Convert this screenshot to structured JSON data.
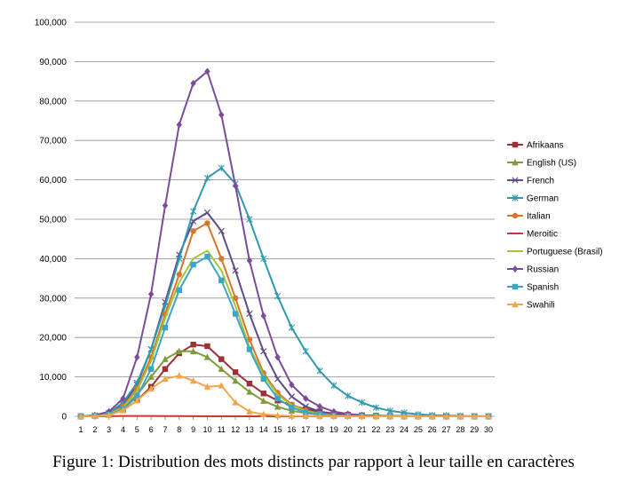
{
  "chart_data": {
    "type": "line",
    "x": [
      1,
      2,
      3,
      4,
      5,
      6,
      7,
      8,
      9,
      10,
      11,
      12,
      13,
      14,
      15,
      16,
      17,
      18,
      19,
      20,
      21,
      22,
      23,
      24,
      25,
      26,
      27,
      28,
      29,
      30
    ],
    "ylim": [
      0,
      100000
    ],
    "yticks": [
      0,
      10000,
      20000,
      30000,
      40000,
      50000,
      60000,
      70000,
      80000,
      90000,
      100000
    ],
    "ytick_labels": [
      "0",
      "10,000",
      "20,000",
      "30,000",
      "40,000",
      "50,000",
      "60,000",
      "70,000",
      "80,000",
      "90,000",
      "100,000"
    ],
    "grid": "horizontal",
    "legend_position": "right",
    "series": [
      {
        "name": "Afrikaans",
        "color": "#9B3135",
        "marker": "square",
        "values": [
          0,
          100,
          400,
          1500,
          4000,
          7500,
          12000,
          16000,
          18200,
          17800,
          14500,
          11200,
          8300,
          5800,
          4000,
          2800,
          1800,
          1200,
          700,
          400,
          250,
          150,
          100,
          50,
          30,
          20,
          10,
          5,
          0,
          0
        ]
      },
      {
        "name": "English (US)",
        "color": "#7F9B3A",
        "marker": "triangle",
        "values": [
          0,
          100,
          500,
          2000,
          5500,
          10000,
          14500,
          16500,
          16500,
          15000,
          12000,
          9000,
          6200,
          3900,
          2400,
          1400,
          800,
          400,
          200,
          100,
          50,
          30,
          20,
          10,
          5,
          0,
          0,
          0,
          0,
          0
        ]
      },
      {
        "name": "French",
        "color": "#5F4A8B",
        "marker": "x",
        "values": [
          0,
          200,
          800,
          3000,
          8000,
          17000,
          29000,
          41000,
          49500,
          51700,
          47000,
          37000,
          26000,
          16500,
          9500,
          5000,
          2500,
          1200,
          500,
          200,
          100,
          50,
          20,
          10,
          5,
          0,
          0,
          0,
          0,
          0
        ]
      },
      {
        "name": "German",
        "color": "#2F9AAE",
        "marker": "star",
        "values": [
          0,
          200,
          800,
          3500,
          8500,
          17000,
          28000,
          40000,
          52000,
          60500,
          63000,
          59000,
          50000,
          40000,
          30500,
          22500,
          16500,
          11500,
          7800,
          5200,
          3500,
          2200,
          1400,
          900,
          500,
          300,
          200,
          100,
          50,
          20
        ]
      },
      {
        "name": "Italian",
        "color": "#D9752B",
        "marker": "circle",
        "values": [
          0,
          100,
          600,
          2500,
          7000,
          15000,
          26000,
          36000,
          47000,
          49000,
          40000,
          30000,
          19500,
          11000,
          6000,
          3000,
          1500,
          700,
          300,
          100,
          50,
          20,
          10,
          5,
          0,
          0,
          0,
          0,
          0,
          0
        ]
      },
      {
        "name": "Meroitic",
        "color": "#C8382D",
        "marker": "none",
        "values": [
          0,
          20,
          50,
          80,
          100,
          80,
          60,
          40,
          20,
          10,
          5,
          0,
          0,
          0,
          0,
          0,
          0,
          0,
          0,
          0,
          0,
          0,
          0,
          0,
          0,
          0,
          0,
          0,
          0,
          0
        ]
      },
      {
        "name": "Portuguese (Brasil)",
        "color": "#A4C43A",
        "marker": "none",
        "values": [
          0,
          100,
          500,
          2200,
          6500,
          14000,
          25000,
          34000,
          40000,
          42000,
          37000,
          28000,
          17500,
          10500,
          5500,
          2800,
          1300,
          600,
          250,
          100,
          50,
          20,
          10,
          5,
          0,
          0,
          0,
          0,
          0,
          0
        ]
      },
      {
        "name": "Russian",
        "color": "#7C4B9C",
        "marker": "diamond",
        "values": [
          0,
          300,
          1200,
          4500,
          15000,
          31000,
          53500,
          74000,
          84500,
          87500,
          76500,
          58500,
          39500,
          25500,
          15000,
          8000,
          4500,
          2500,
          1200,
          600,
          300,
          150,
          80,
          40,
          20,
          10,
          5,
          0,
          0,
          0
        ]
      },
      {
        "name": "Spanish",
        "color": "#3BA6C8",
        "marker": "square",
        "values": [
          0,
          100,
          400,
          1800,
          5000,
          12000,
          22500,
          32000,
          38500,
          40500,
          34500,
          26000,
          17000,
          9500,
          4500,
          2200,
          1000,
          500,
          200,
          100,
          50,
          20,
          10,
          5,
          0,
          0,
          0,
          0,
          0,
          0
        ]
      },
      {
        "name": "Swahili",
        "color": "#F2A54A",
        "marker": "triangle",
        "values": [
          0,
          100,
          300,
          1500,
          4000,
          7000,
          9500,
          10300,
          9000,
          7500,
          7800,
          3500,
          1200,
          500,
          200,
          100,
          50,
          20,
          10,
          5,
          0,
          0,
          0,
          0,
          0,
          0,
          0,
          0,
          0,
          0
        ]
      }
    ]
  },
  "caption": "Figure 1: Distribution des mots distincts par rapport à leur taille en caractères"
}
